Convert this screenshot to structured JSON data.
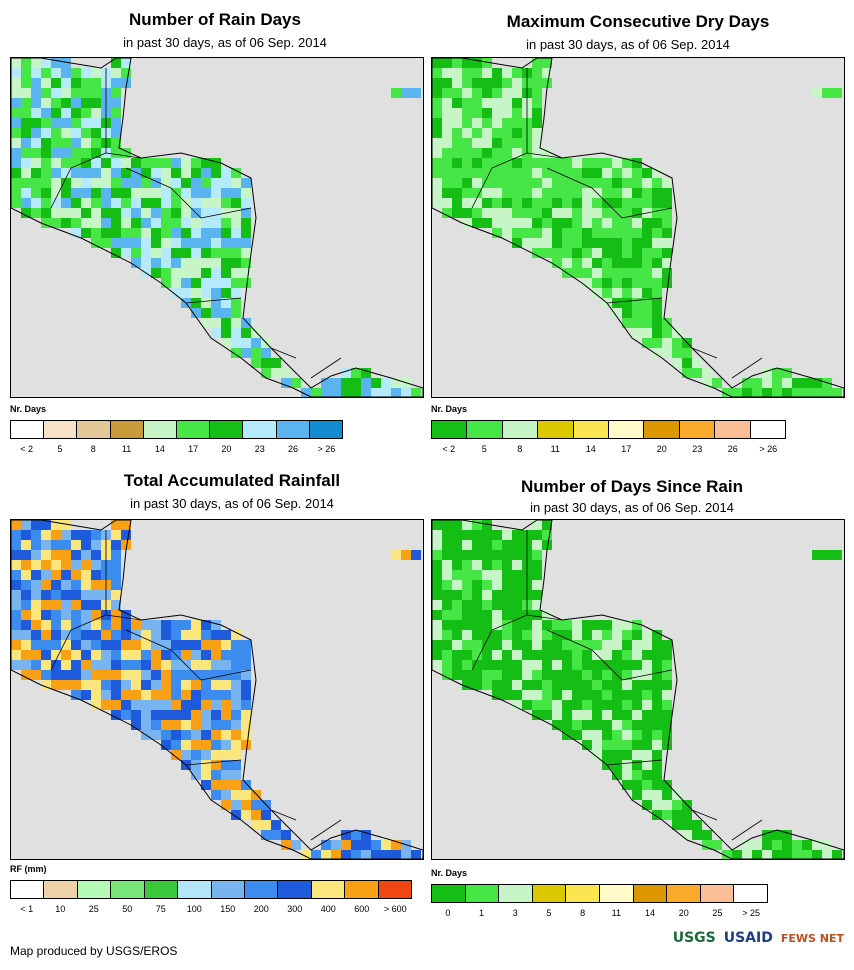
{
  "panels": [
    {
      "title": "Number of Rain Days",
      "subtitle": "in past 30 days, as of 06 Sep. 2014",
      "legend_title": "Nr. Days",
      "legend_colors": [
        "#ffffff",
        "#f7e2c6",
        "#e2c896",
        "#c89b3a",
        "#c8f5c8",
        "#46e646",
        "#14be14",
        "#b4eafa",
        "#5ab4f0",
        "#148cd2"
      ],
      "ticks": [
        "< 2",
        "5",
        "8",
        "11",
        "14",
        "17",
        "20",
        "23",
        "26",
        "> 26"
      ],
      "land_colors": [
        "#14be14",
        "#46e646",
        "#b4eafa",
        "#5ab4f0",
        "#c8f5c8"
      ]
    },
    {
      "title": "Maximum Consecutive Dry Days",
      "subtitle": "in past 30 days, as of 06 Sep. 2014",
      "legend_title": "Nr. Days",
      "legend_colors": [
        "#14be14",
        "#46e646",
        "#c8f5c8",
        "#dcc800",
        "#fae650",
        "#fffac8",
        "#dc9600",
        "#faaa28",
        "#fabe96",
        "#ffffff"
      ],
      "ticks": [
        "< 2",
        "5",
        "8",
        "11",
        "14",
        "17",
        "20",
        "23",
        "26",
        "> 26"
      ],
      "land_colors": [
        "#46e646",
        "#14be14",
        "#46e646",
        "#c8f5c8"
      ]
    },
    {
      "title": "Total Accumulated Rainfall",
      "subtitle": "in past 30 days, as of 06 Sep. 2014",
      "legend_title": "RF (mm)",
      "legend_colors": [
        "#ffffff",
        "#f0d2aa",
        "#b4fab4",
        "#78e678",
        "#3cc83c",
        "#b4e6fa",
        "#78b4f0",
        "#3c8cf0",
        "#1e5adc",
        "#fae67c",
        "#faa014",
        "#f04614"
      ],
      "ticks": [
        "< 1",
        "10",
        "25",
        "50",
        "75",
        "100",
        "150",
        "200",
        "300",
        "400",
        "600",
        "> 600"
      ],
      "land_colors": [
        "#3c8cf0",
        "#1e5adc",
        "#78b4f0",
        "#fae67c",
        "#faa014"
      ]
    },
    {
      "title": "Number of Days Since Rain",
      "subtitle": "in past 30 days, as of 06 Sep. 2014",
      "legend_title": "Nr. Days",
      "legend_colors": [
        "#14be14",
        "#46e646",
        "#c8f5c8",
        "#dcc800",
        "#fae650",
        "#fffac8",
        "#dc9600",
        "#faaa28",
        "#fabe96",
        "#ffffff"
      ],
      "ticks": [
        "0",
        "1",
        "3",
        "5",
        "8",
        "11",
        "14",
        "20",
        "25",
        "> 25"
      ],
      "land_colors": [
        "#14be14",
        "#14be14",
        "#14be14",
        "#46e646",
        "#c8f5c8"
      ]
    }
  ],
  "footer": "Map produced by USGS/EROS",
  "logos": [
    "USGS",
    "USAID",
    "FEWS NET"
  ],
  "colors": {
    "ocean": "#e0e0e0",
    "border": "#000000"
  }
}
